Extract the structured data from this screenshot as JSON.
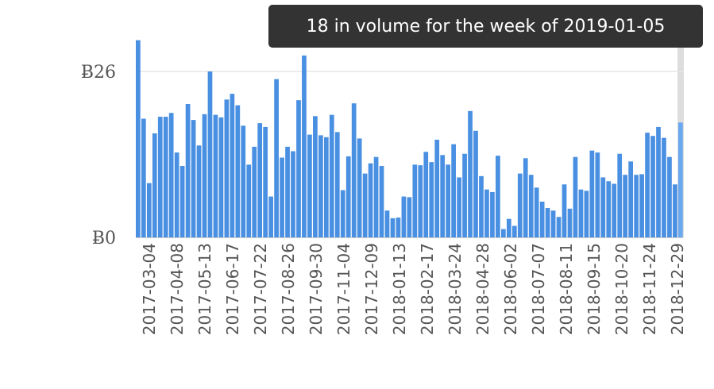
{
  "tooltip": {
    "text": "18 in volume for the week of 2019-01-05"
  },
  "colors": {
    "bar": "#4a90e2",
    "bar_highlight": "#6aa8f0",
    "grid": "#e6e6e6",
    "axis": "#cccccc",
    "cursor": "#dddddd"
  },
  "chart_data": {
    "type": "bar",
    "title": "",
    "xlabel": "",
    "ylabel": "",
    "ylim": [
      0,
      30
    ],
    "yticks": [
      {
        "value": 0,
        "label": "Ƀ0"
      },
      {
        "value": 26,
        "label": "Ƀ26"
      }
    ],
    "xtick_labels": [
      "2017-03-04",
      "2017-04-08",
      "2017-05-13",
      "2017-06-17",
      "2017-07-22",
      "2017-08-26",
      "2017-09-30",
      "2017-11-04",
      "2017-12-09",
      "2018-01-13",
      "2018-02-17",
      "2018-03-24",
      "2018-04-28",
      "2018-06-02",
      "2018-07-07",
      "2018-08-11",
      "2018-09-15",
      "2018-10-20",
      "2018-11-24",
      "2018-12-29"
    ],
    "first_week": "2017-02-25",
    "last_week": "2019-01-05",
    "highlighted_week": "2019-01-05",
    "values": [
      30.9,
      18.6,
      8.5,
      16.3,
      18.9,
      18.9,
      19.5,
      13.3,
      11.2,
      20.9,
      18.4,
      14.4,
      19.3,
      26.0,
      19.2,
      18.8,
      21.6,
      22.5,
      20.7,
      17.5,
      11.4,
      14.2,
      17.9,
      17.3,
      6.4,
      24.8,
      12.5,
      14.2,
      13.5,
      21.5,
      28.5,
      16.1,
      19.0,
      16.0,
      15.7,
      19.2,
      16.5,
      7.4,
      12.7,
      21.0,
      15.5,
      10.0,
      11.6,
      12.6,
      11.2,
      4.2,
      3.0,
      3.1,
      6.4,
      6.3,
      11.4,
      11.3,
      13.4,
      11.8,
      15.3,
      12.9,
      11.4,
      14.6,
      9.4,
      13.1,
      19.8,
      16.7,
      9.6,
      7.5,
      7.1,
      12.8,
      1.3,
      2.9,
      1.8,
      10.0,
      12.4,
      9.8,
      7.8,
      5.6,
      4.6,
      4.2,
      3.2,
      8.3,
      4.5,
      12.6,
      7.5,
      7.3,
      13.6,
      13.3,
      9.4,
      8.8,
      8.4,
      13.1,
      9.8,
      11.9,
      9.8,
      9.9,
      16.4,
      15.9,
      17.3,
      15.6,
      12.6,
      8.3,
      18.0
    ]
  }
}
